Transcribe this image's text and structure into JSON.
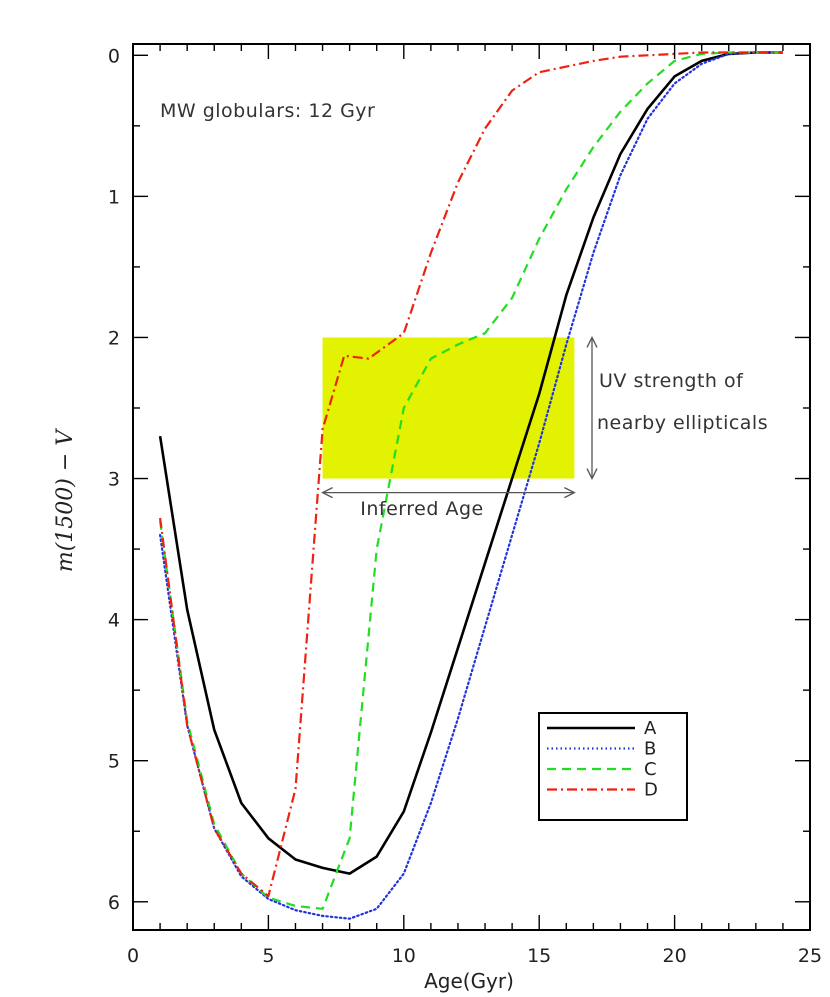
{
  "chart_data": {
    "type": "line",
    "xlabel": "Age(Gyr)",
    "ylabel": "m(1500) − V",
    "xlim": [
      0,
      25
    ],
    "ylim": [
      6.2,
      -0.08
    ],
    "y_inverted": true,
    "xticks": [
      0,
      5,
      10,
      15,
      20,
      25
    ],
    "yticks": [
      0,
      1,
      2,
      3,
      4,
      5,
      6
    ],
    "grid": false,
    "legend_position": "bottom-right",
    "series": [
      {
        "name": "A",
        "color": "#000000",
        "style": "solid",
        "x": [
          1,
          2,
          3,
          4,
          5,
          6,
          7,
          8,
          9,
          10,
          11,
          12,
          13,
          14,
          15,
          16,
          17,
          18,
          19,
          20,
          21,
          22,
          23,
          24
        ],
        "y": [
          2.7,
          3.93,
          4.78,
          5.3,
          5.55,
          5.7,
          5.76,
          5.8,
          5.68,
          5.36,
          4.8,
          4.2,
          3.6,
          3.0,
          2.4,
          1.7,
          1.15,
          0.7,
          0.38,
          0.15,
          0.04,
          -0.01,
          -0.02,
          -0.02
        ]
      },
      {
        "name": "B",
        "color": "#2233dd",
        "style": "dotted",
        "x": [
          1,
          2,
          3,
          4,
          5,
          6,
          7,
          8,
          9,
          10,
          11,
          12,
          13,
          14,
          15,
          16,
          17,
          18,
          19,
          20,
          21,
          22,
          23,
          24
        ],
        "y": [
          3.4,
          4.75,
          5.48,
          5.82,
          5.98,
          6.06,
          6.1,
          6.12,
          6.05,
          5.8,
          5.3,
          4.7,
          4.05,
          3.4,
          2.75,
          2.05,
          1.4,
          0.85,
          0.45,
          0.2,
          0.06,
          -0.01,
          -0.02,
          -0.02
        ]
      },
      {
        "name": "C",
        "color": "#22dd22",
        "style": "dashed",
        "x": [
          1,
          2,
          3,
          4,
          5,
          6,
          7,
          8,
          9,
          10,
          11,
          12,
          13,
          14,
          15,
          16,
          17,
          18,
          19,
          20,
          21,
          22,
          23,
          24
        ],
        "y": [
          3.3,
          4.72,
          5.45,
          5.8,
          5.97,
          6.03,
          6.05,
          5.55,
          3.5,
          2.5,
          2.15,
          2.05,
          1.97,
          1.72,
          1.3,
          0.95,
          0.65,
          0.4,
          0.2,
          0.04,
          -0.01,
          -0.02,
          -0.02,
          -0.02
        ]
      },
      {
        "name": "D",
        "color": "#ee2211",
        "style": "dashdot",
        "x": [
          1,
          2,
          3,
          4,
          5,
          6,
          7,
          7.8,
          8.7,
          10,
          11,
          12,
          13,
          14,
          15,
          16,
          17,
          18,
          19,
          20,
          21,
          22,
          23,
          24
        ],
        "y": [
          3.28,
          4.75,
          5.48,
          5.8,
          5.96,
          5.2,
          2.65,
          2.13,
          2.15,
          1.97,
          1.4,
          0.9,
          0.52,
          0.25,
          0.12,
          0.08,
          0.04,
          0.01,
          0.0,
          -0.01,
          -0.02,
          -0.02,
          -0.02,
          -0.02
        ]
      }
    ],
    "annotations": {
      "top_left": "MW globulars: 12 Gyr",
      "band_label_line1": "UV strength of",
      "band_label_line2": "nearby ellipticals",
      "inferred_age": "Inferred Age"
    },
    "highlight_box": {
      "x": [
        7,
        16.3
      ],
      "y": [
        2,
        3
      ],
      "color": "#e2f200"
    },
    "inferred_age_range": [
      7,
      16.3
    ]
  }
}
